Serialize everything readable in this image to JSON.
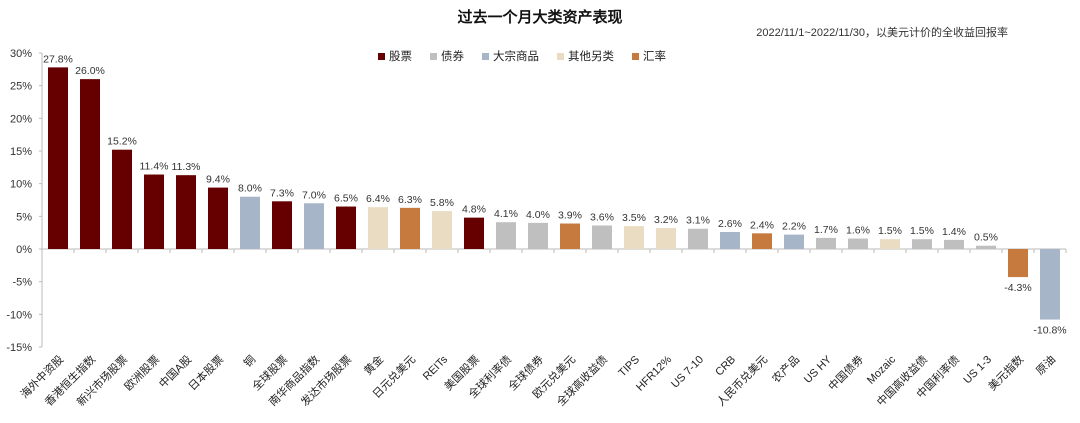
{
  "chart_data": {
    "type": "bar",
    "title": "过去一个月大类资产表现",
    "subtitle": "2022/11/1~2022/11/30，以美元计价的全收益回报率",
    "ylim": [
      -15,
      30
    ],
    "yticks": [
      30,
      25,
      20,
      15,
      10,
      5,
      0,
      -5,
      -10,
      -15
    ],
    "ytick_labels": [
      "30%",
      "25%",
      "20%",
      "15%",
      "10%",
      "5%",
      "0%",
      "-5%",
      "-10%",
      "-15%"
    ],
    "grid": false,
    "legend_placement": "top-center",
    "legend": [
      {
        "key": "equity",
        "label": "股票",
        "color": "#660000"
      },
      {
        "key": "bond",
        "label": "债券",
        "color": "#BFBFBF"
      },
      {
        "key": "commodity",
        "label": "大宗商品",
        "color": "#A7B5C9"
      },
      {
        "key": "other",
        "label": "其他另类",
        "color": "#EADBC3"
      },
      {
        "key": "fx",
        "label": "汇率",
        "color": "#C67A3E"
      }
    ],
    "categories": [
      "海外中资股",
      "香港恒生指数",
      "新兴市场股票",
      "欧洲股票",
      "中国A股",
      "日本股票",
      "铜",
      "全球股票",
      "南华商品指数",
      "发达市场股票",
      "黄金",
      "日元兑美元",
      "REITs",
      "美国股票",
      "全球利率债",
      "全球债券",
      "欧元兑美元",
      "全球高收益债",
      "TIPS",
      "HFR12%",
      "US 7-10",
      "CRB",
      "人民币兑美元",
      "农产品",
      "US HY",
      "中国债券",
      "Mozaic",
      "中国高收益债",
      "中国利率债",
      "US 1-3",
      "美元指数",
      "原油"
    ],
    "values": [
      27.8,
      26.0,
      15.2,
      11.4,
      11.3,
      9.4,
      8.0,
      7.3,
      7.0,
      6.5,
      6.4,
      6.3,
      5.8,
      4.8,
      4.1,
      4.0,
      3.9,
      3.6,
      3.5,
      3.2,
      3.1,
      2.6,
      2.4,
      2.2,
      1.7,
      1.6,
      1.5,
      1.5,
      1.4,
      0.5,
      -4.3,
      -10.8
    ],
    "data_labels": [
      "27.8%",
      "26.0%",
      "15.2%",
      "11.4%",
      "11.3%",
      "9.4%",
      "8.0%",
      "7.3%",
      "7.0%",
      "6.5%",
      "6.4%",
      "6.3%",
      "5.8%",
      "4.8%",
      "4.1%",
      "4.0%",
      "3.9%",
      "3.6%",
      "3.5%",
      "3.2%",
      "3.1%",
      "2.6%",
      "2.4%",
      "2.2%",
      "1.7%",
      "1.6%",
      "1.5%",
      "1.5%",
      "1.4%",
      "0.5%",
      "-4.3%",
      "-10.8%"
    ],
    "groups": [
      "equity",
      "equity",
      "equity",
      "equity",
      "equity",
      "equity",
      "commodity",
      "equity",
      "commodity",
      "equity",
      "other",
      "fx",
      "other",
      "equity",
      "bond",
      "bond",
      "fx",
      "bond",
      "other",
      "other",
      "bond",
      "commodity",
      "fx",
      "commodity",
      "bond",
      "bond",
      "other",
      "bond",
      "bond",
      "bond",
      "fx",
      "commodity"
    ]
  }
}
